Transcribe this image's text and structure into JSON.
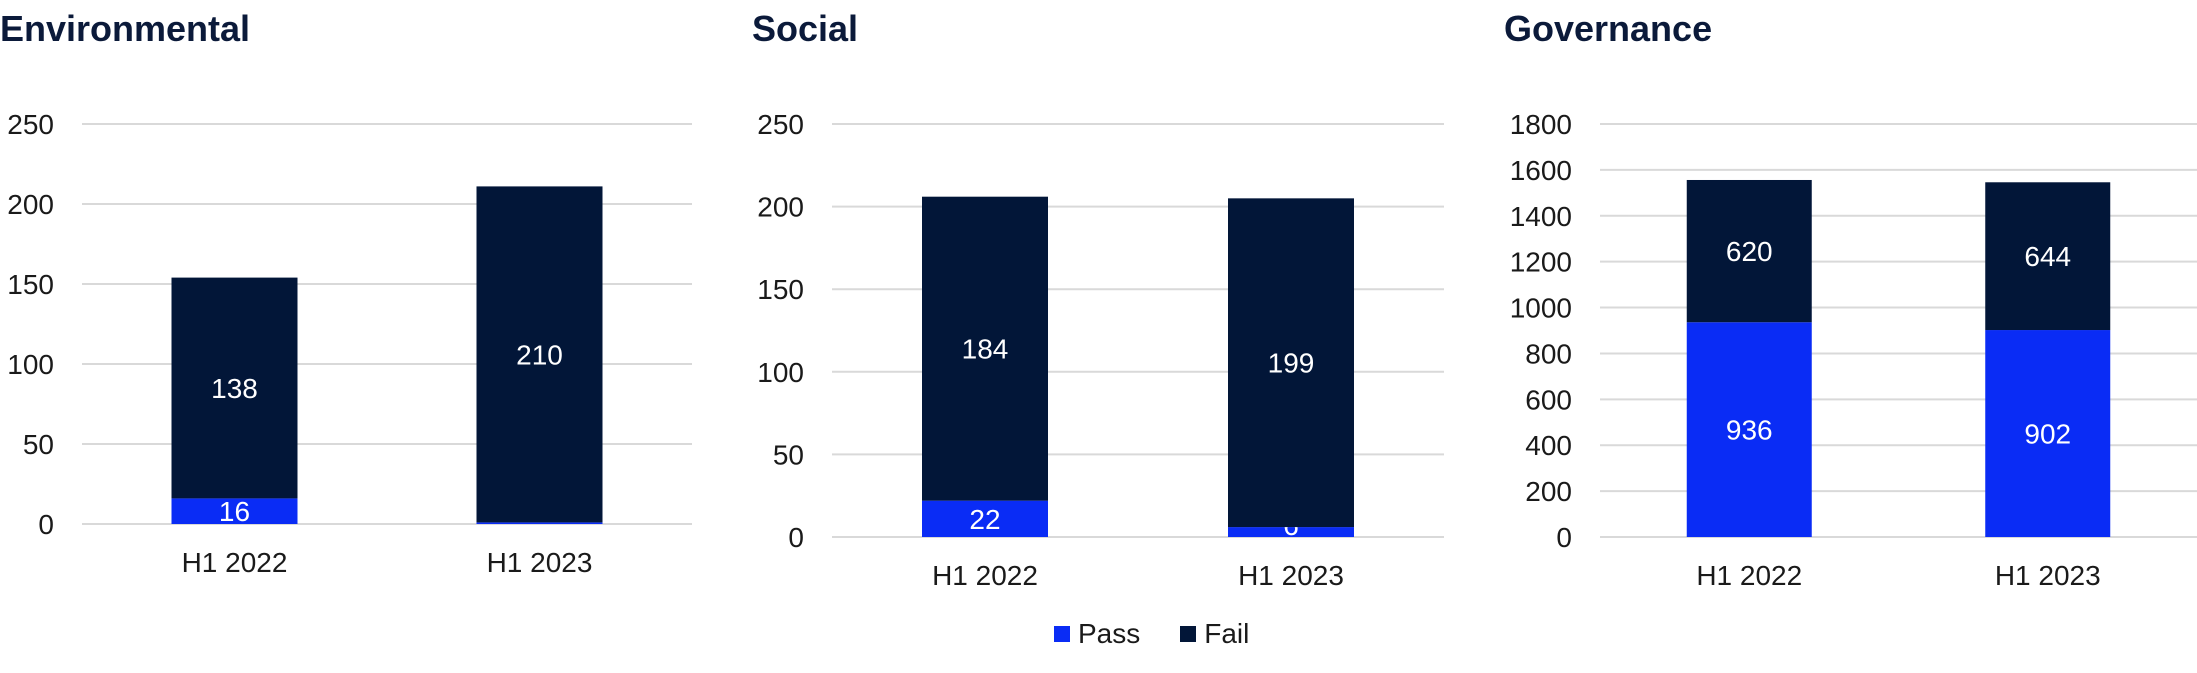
{
  "colors": {
    "pass": "#0a2cf5",
    "fail": "#021638",
    "grid": "#d9d9d9"
  },
  "legend": [
    {
      "name": "Pass",
      "color": "#0a2cf5"
    },
    {
      "name": "Fail",
      "color": "#021638"
    }
  ],
  "chart_data": [
    {
      "type": "bar",
      "stacked": true,
      "title": "Environmental",
      "categories": [
        "H1 2022",
        "H1 2023"
      ],
      "series": [
        {
          "name": "Pass",
          "values": [
            16,
            1
          ]
        },
        {
          "name": "Fail",
          "values": [
            138,
            210
          ]
        }
      ],
      "ylim": [
        0,
        250
      ],
      "yticks": [
        0,
        50,
        100,
        150,
        200,
        250
      ],
      "grid": true
    },
    {
      "type": "bar",
      "stacked": true,
      "title": "Social",
      "categories": [
        "H1 2022",
        "H1 2023"
      ],
      "series": [
        {
          "name": "Pass",
          "values": [
            22,
            6
          ]
        },
        {
          "name": "Fail",
          "values": [
            184,
            199
          ]
        }
      ],
      "ylim": [
        0,
        250
      ],
      "yticks": [
        0,
        50,
        100,
        150,
        200,
        250
      ],
      "grid": true
    },
    {
      "type": "bar",
      "stacked": true,
      "title": "Governance",
      "categories": [
        "H1 2022",
        "H1 2023"
      ],
      "series": [
        {
          "name": "Pass",
          "values": [
            936,
            902
          ]
        },
        {
          "name": "Fail",
          "values": [
            620,
            644
          ]
        }
      ],
      "ylim": [
        0,
        1800
      ],
      "yticks": [
        0,
        200,
        400,
        600,
        800,
        1000,
        1200,
        1400,
        1600,
        1800
      ],
      "grid": true,
      "legend_position": "bottom"
    }
  ]
}
